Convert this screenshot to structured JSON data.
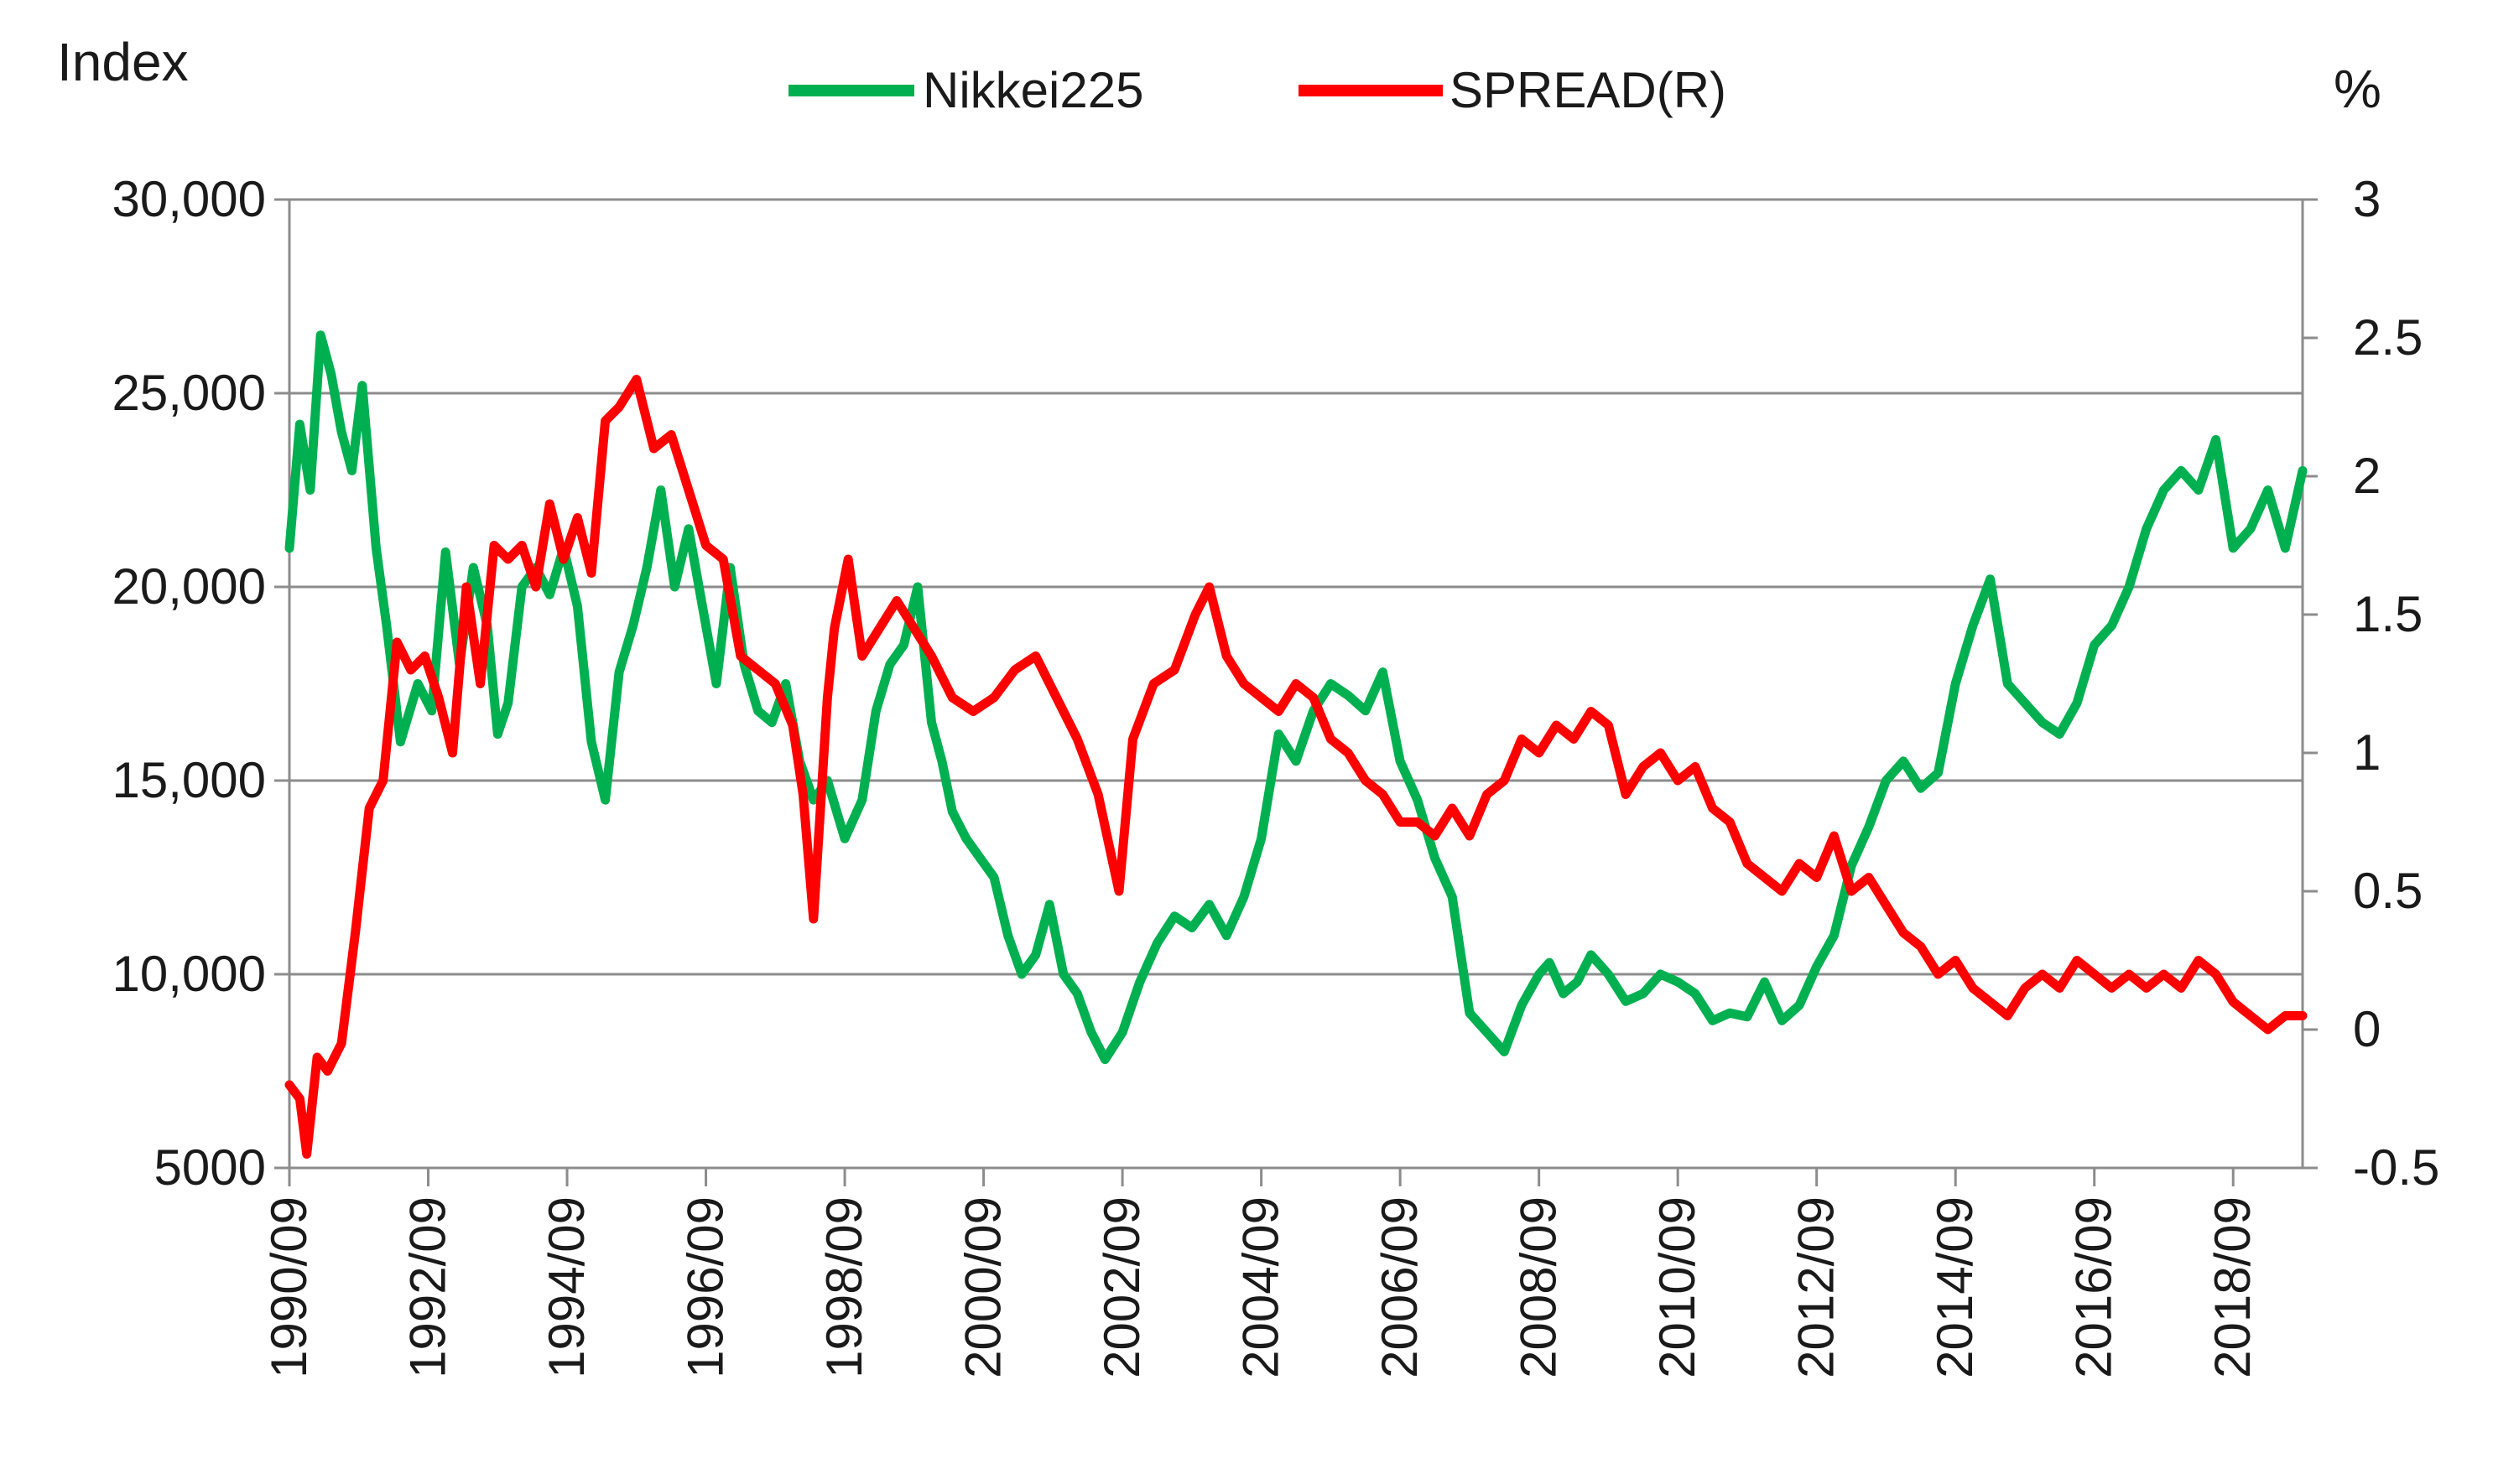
{
  "chart_data": {
    "type": "line",
    "title": "",
    "y_label_left": "Index",
    "y_label_right": "%",
    "ylim_left": [
      5000,
      30000
    ],
    "ylim_right": [
      -0.5,
      3
    ],
    "yticks_left": [
      5000,
      10000,
      15000,
      20000,
      25000,
      30000
    ],
    "yticks_left_labels": [
      "5000",
      "10,000",
      "15,000",
      "20,000",
      "25,000",
      "30,000"
    ],
    "yticks_right": [
      -0.5,
      0,
      0.5,
      1,
      1.5,
      2,
      2.5,
      3
    ],
    "yticks_right_labels": [
      "-0.5",
      "0",
      "0.5",
      "1",
      "1.5",
      "2",
      "2.5",
      "3"
    ],
    "xlim": [
      1990.75,
      2019.75
    ],
    "xticks": [
      1990.75,
      1992.75,
      1994.75,
      1996.75,
      1998.75,
      2000.75,
      2002.75,
      2004.75,
      2006.75,
      2008.75,
      2010.75,
      2012.75,
      2014.75,
      2016.75,
      2018.75
    ],
    "xtick_labels": [
      "1990/09",
      "1992/09",
      "1994/09",
      "1996/09",
      "1998/09",
      "2000/09",
      "2002/09",
      "2004/09",
      "2006/09",
      "2008/09",
      "2010/09",
      "2012/09",
      "2014/09",
      "2016/09",
      "2018/09"
    ],
    "grid": true,
    "legend_position": "top-center",
    "series": [
      {
        "name": "Nikkei225",
        "axis": "left",
        "color": "#00b050",
        "x": [
          1990.75,
          1990.9,
          1991.05,
          1991.2,
          1991.35,
          1991.5,
          1991.65,
          1991.8,
          1992.0,
          1992.15,
          1992.35,
          1992.6,
          1992.8,
          1993.0,
          1993.2,
          1993.4,
          1993.6,
          1993.75,
          1993.9,
          1994.1,
          1994.3,
          1994.5,
          1994.7,
          1994.9,
          1995.1,
          1995.3,
          1995.5,
          1995.7,
          1995.9,
          1996.1,
          1996.3,
          1996.5,
          1996.7,
          1996.9,
          1997.1,
          1997.3,
          1997.5,
          1997.7,
          1997.9,
          1998.1,
          1998.3,
          1998.5,
          1998.75,
          1999.0,
          1999.2,
          1999.4,
          1999.6,
          1999.8,
          2000.0,
          2000.15,
          2000.3,
          2000.5,
          2000.7,
          2000.9,
          2001.1,
          2001.3,
          2001.5,
          2001.7,
          2001.9,
          2002.1,
          2002.3,
          2002.5,
          2002.75,
          2003.0,
          2003.25,
          2003.5,
          2003.75,
          2004.0,
          2004.25,
          2004.5,
          2004.75,
          2005.0,
          2005.25,
          2005.5,
          2005.75,
          2006.0,
          2006.25,
          2006.5,
          2006.75,
          2007.0,
          2007.25,
          2007.5,
          2007.75,
          2008.0,
          2008.25,
          2008.5,
          2008.75,
          2008.9,
          2009.1,
          2009.3,
          2009.5,
          2009.75,
          2010.0,
          2010.25,
          2010.5,
          2010.75,
          2011.0,
          2011.25,
          2011.5,
          2011.75,
          2012.0,
          2012.25,
          2012.5,
          2012.75,
          2013.0,
          2013.25,
          2013.5,
          2013.75,
          2014.0,
          2014.25,
          2014.5,
          2014.75,
          2015.0,
          2015.25,
          2015.5,
          2015.75,
          2016.0,
          2016.25,
          2016.5,
          2016.75,
          2017.0,
          2017.25,
          2017.5,
          2017.75,
          2018.0,
          2018.25,
          2018.5,
          2018.75,
          2019.0,
          2019.25,
          2019.5,
          2019.75
        ],
        "values": [
          21000,
          24200,
          22500,
          26500,
          25500,
          24000,
          23000,
          25200,
          21000,
          19000,
          16000,
          17500,
          16800,
          20900,
          18000,
          20500,
          19000,
          16200,
          17000,
          20000,
          20500,
          19800,
          21000,
          19500,
          16000,
          14500,
          17800,
          19000,
          20500,
          22500,
          20000,
          21500,
          19500,
          17500,
          20500,
          18000,
          16800,
          16500,
          17500,
          15500,
          14500,
          15000,
          13500,
          14500,
          16800,
          18000,
          18500,
          20000,
          16500,
          15500,
          14200,
          13500,
          13000,
          12500,
          11000,
          10000,
          10500,
          11800,
          10000,
          9500,
          8500,
          7800,
          8500,
          9800,
          10800,
          11500,
          11200,
          11800,
          11000,
          12000,
          13500,
          16200,
          15500,
          16800,
          17500,
          17200,
          16800,
          17800,
          15500,
          14500,
          13000,
          12000,
          9000,
          8500,
          8000,
          9200,
          10000,
          10300,
          9500,
          9800,
          10500,
          10000,
          9300,
          9500,
          10000,
          9800,
          9500,
          8800,
          9000,
          8900,
          9800,
          8800,
          9200,
          10200,
          11000,
          12800,
          13800,
          15000,
          15500,
          14800,
          15200,
          17500,
          19000,
          20200,
          17500,
          17000,
          16500,
          16200,
          17000,
          18500,
          19000,
          20000,
          21500,
          22500,
          23000,
          22500,
          23800,
          21000,
          21500,
          22500,
          21000,
          23000
        ]
      },
      {
        "name": "SPREAD(R)",
        "axis": "right",
        "color": "#ff0000",
        "x": [
          1990.75,
          1990.9,
          1991.0,
          1991.15,
          1991.3,
          1991.5,
          1991.7,
          1991.9,
          1992.1,
          1992.3,
          1992.5,
          1992.7,
          1992.9,
          1993.1,
          1993.3,
          1993.5,
          1993.7,
          1993.9,
          1994.1,
          1994.3,
          1994.5,
          1994.7,
          1994.9,
          1995.1,
          1995.3,
          1995.5,
          1995.75,
          1996.0,
          1996.25,
          1996.5,
          1996.75,
          1997.0,
          1997.25,
          1997.5,
          1997.75,
          1998.0,
          1998.15,
          1998.3,
          1998.5,
          1998.6,
          1998.8,
          1999.0,
          1999.25,
          1999.5,
          1999.75,
          2000.0,
          2000.3,
          2000.6,
          2000.9,
          2001.2,
          2001.5,
          2001.8,
          2002.1,
          2002.4,
          2002.7,
          2002.9,
          2003.2,
          2003.5,
          2003.8,
          2004.0,
          2004.25,
          2004.5,
          2004.75,
          2005.0,
          2005.25,
          2005.5,
          2005.75,
          2006.0,
          2006.25,
          2006.5,
          2006.75,
          2007.0,
          2007.25,
          2007.5,
          2007.75,
          2008.0,
          2008.25,
          2008.5,
          2008.75,
          2009.0,
          2009.25,
          2009.5,
          2009.75,
          2010.0,
          2010.25,
          2010.5,
          2010.75,
          2011.0,
          2011.25,
          2011.5,
          2011.75,
          2012.0,
          2012.25,
          2012.5,
          2012.75,
          2013.0,
          2013.25,
          2013.5,
          2013.75,
          2014.0,
          2014.25,
          2014.5,
          2014.75,
          2015.0,
          2015.25,
          2015.5,
          2015.75,
          2016.0,
          2016.25,
          2016.5,
          2016.75,
          2017.0,
          2017.25,
          2017.5,
          2017.75,
          2018.0,
          2018.25,
          2018.5,
          2018.75,
          2019.0,
          2019.25,
          2019.5,
          2019.75
        ],
        "values": [
          -0.2,
          -0.25,
          -0.45,
          -0.1,
          -0.15,
          -0.05,
          0.35,
          0.8,
          0.9,
          1.4,
          1.3,
          1.35,
          1.2,
          1.0,
          1.6,
          1.25,
          1.75,
          1.7,
          1.75,
          1.6,
          1.9,
          1.7,
          1.85,
          1.65,
          2.2,
          2.25,
          2.35,
          2.1,
          2.15,
          1.95,
          1.75,
          1.7,
          1.35,
          1.3,
          1.25,
          1.1,
          0.85,
          0.4,
          1.2,
          1.45,
          1.7,
          1.35,
          1.45,
          1.55,
          1.45,
          1.35,
          1.2,
          1.15,
          1.2,
          1.3,
          1.35,
          1.2,
          1.05,
          0.85,
          0.5,
          1.05,
          1.25,
          1.3,
          1.5,
          1.6,
          1.35,
          1.25,
          1.2,
          1.15,
          1.25,
          1.2,
          1.05,
          1.0,
          0.9,
          0.85,
          0.75,
          0.75,
          0.7,
          0.8,
          0.7,
          0.85,
          0.9,
          1.05,
          1.0,
          1.1,
          1.05,
          1.15,
          1.1,
          0.85,
          0.95,
          1.0,
          0.9,
          0.95,
          0.8,
          0.75,
          0.6,
          0.55,
          0.5,
          0.6,
          0.55,
          0.7,
          0.5,
          0.55,
          0.45,
          0.35,
          0.3,
          0.2,
          0.25,
          0.15,
          0.1,
          0.05,
          0.15,
          0.2,
          0.15,
          0.25,
          0.2,
          0.15,
          0.2,
          0.15,
          0.2,
          0.15,
          0.25,
          0.2,
          0.1,
          0.05,
          0.0,
          0.05,
          0.05
        ]
      }
    ]
  }
}
